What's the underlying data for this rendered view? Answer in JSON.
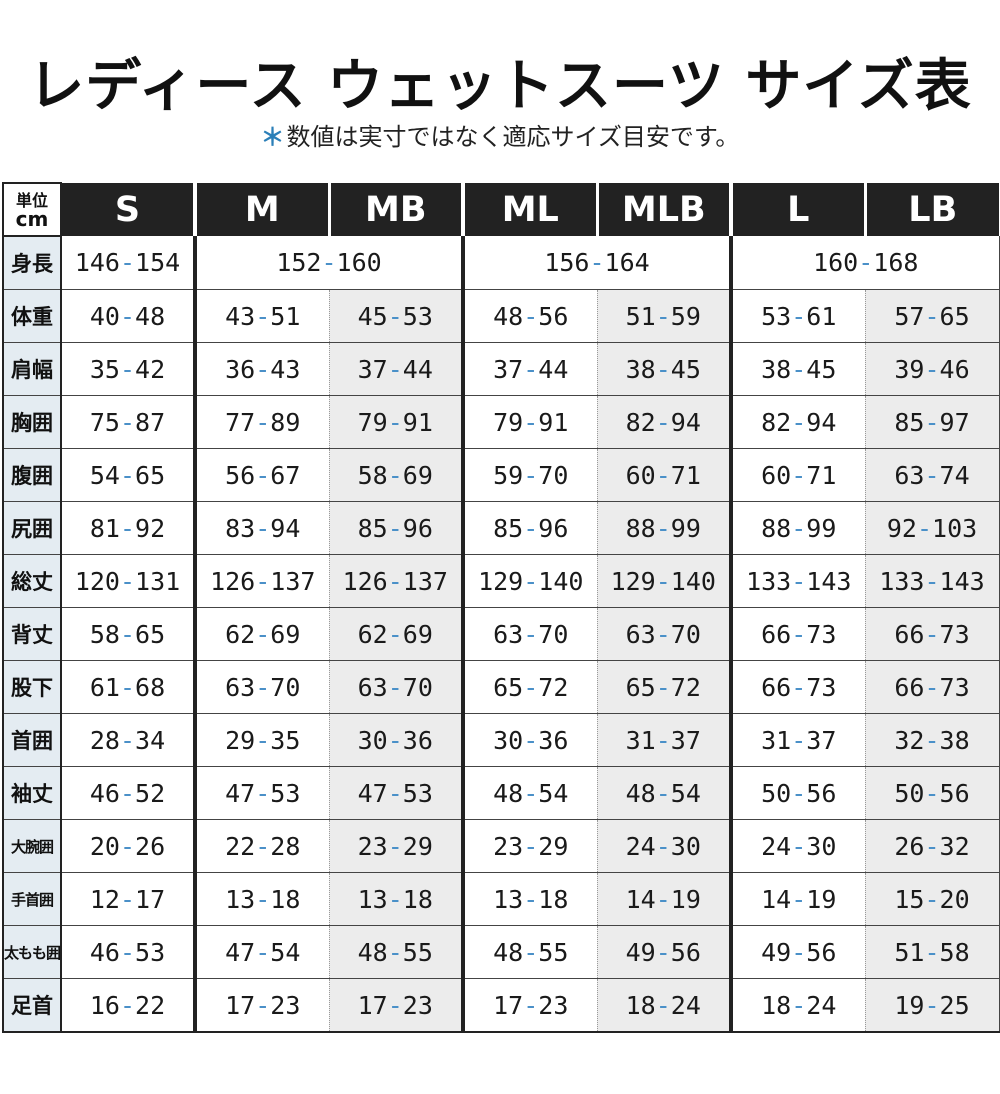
{
  "title": "レディース ウェットスーツ サイズ表",
  "note": {
    "star": "＊",
    "text": "数値は実寸ではなく適応サイズ目安です。"
  },
  "table": {
    "unit_line1": "単位",
    "unit_line2": "cm",
    "sizes": [
      "S",
      "M",
      "MB",
      "ML",
      "MLB",
      "L",
      "LB"
    ],
    "height_label": "身長",
    "height_values": [
      "146-154",
      "152-160",
      "156-164",
      "160-168"
    ],
    "rows": [
      {
        "label": "体重",
        "values": [
          "40-48",
          "43-51",
          "45-53",
          "48-56",
          "51-59",
          "53-61",
          "57-65"
        ]
      },
      {
        "label": "肩幅",
        "values": [
          "35-42",
          "36-43",
          "37-44",
          "37-44",
          "38-45",
          "38-45",
          "39-46"
        ]
      },
      {
        "label": "胸囲",
        "values": [
          "75-87",
          "77-89",
          "79-91",
          "79-91",
          "82-94",
          "82-94",
          "85-97"
        ]
      },
      {
        "label": "腹囲",
        "values": [
          "54-65",
          "56-67",
          "58-69",
          "59-70",
          "60-71",
          "60-71",
          "63-74"
        ]
      },
      {
        "label": "尻囲",
        "values": [
          "81-92",
          "83-94",
          "85-96",
          "85-96",
          "88-99",
          "88-99",
          "92-103"
        ]
      },
      {
        "label": "総丈",
        "values": [
          "120-131",
          "126-137",
          "126-137",
          "129-140",
          "129-140",
          "133-143",
          "133-143"
        ]
      },
      {
        "label": "背丈",
        "values": [
          "58-65",
          "62-69",
          "62-69",
          "63-70",
          "63-70",
          "66-73",
          "66-73"
        ]
      },
      {
        "label": "股下",
        "values": [
          "61-68",
          "63-70",
          "63-70",
          "65-72",
          "65-72",
          "66-73",
          "66-73"
        ]
      },
      {
        "label": "首囲",
        "values": [
          "28-34",
          "29-35",
          "30-36",
          "30-36",
          "31-37",
          "31-37",
          "32-38"
        ]
      },
      {
        "label": "袖丈",
        "values": [
          "46-52",
          "47-53",
          "47-53",
          "48-54",
          "48-54",
          "50-56",
          "50-56"
        ]
      },
      {
        "label": "大腕囲",
        "values": [
          "20-26",
          "22-28",
          "23-29",
          "23-29",
          "24-30",
          "24-30",
          "26-32"
        ]
      },
      {
        "label": "手首囲",
        "values": [
          "12-17",
          "13-18",
          "13-18",
          "13-18",
          "14-19",
          "14-19",
          "15-20"
        ]
      },
      {
        "label": "太もも囲",
        "values": [
          "46-53",
          "47-54",
          "48-55",
          "48-55",
          "49-56",
          "49-56",
          "51-58"
        ]
      },
      {
        "label": "足首",
        "values": [
          "16-22",
          "17-23",
          "17-23",
          "17-23",
          "18-24",
          "18-24",
          "19-25"
        ]
      }
    ]
  },
  "colors": {
    "header_bg": "#222222",
    "label_bg": "#e4ecf2",
    "shade_bg": "#ececec",
    "dash": "#4a90c8",
    "accent_star": "#2b7fb8"
  }
}
